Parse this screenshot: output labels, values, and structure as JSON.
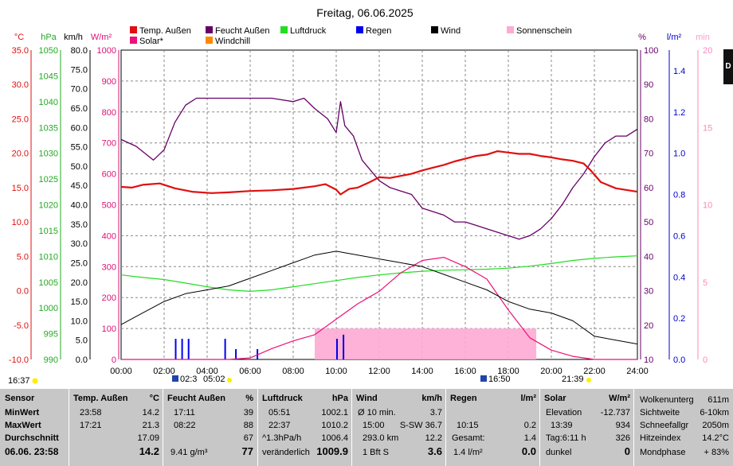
{
  "title": "Freitag, 06.06.2025",
  "legend": [
    {
      "label": "Temp. Außen",
      "color": "#e01010"
    },
    {
      "label": "Feucht Außen",
      "color": "#660066"
    },
    {
      "label": "Luftdruck",
      "color": "#22dd22"
    },
    {
      "label": "Regen",
      "color": "#0000ee"
    },
    {
      "label": "Wind",
      "color": "#000000"
    },
    {
      "label": "Sonnenschein",
      "color": "#ffaad4"
    },
    {
      "label": "Solar*",
      "color": "#ee1177"
    },
    {
      "label": "Windchill",
      "color": "#ff8800"
    }
  ],
  "axes_units": {
    "temp": "°C",
    "press": "hPa",
    "wind": "km/h",
    "solar": "W/m²",
    "hum": "%",
    "rain": "l/m²",
    "sun": "min"
  },
  "axis_ticks": {
    "temp": [
      "35.0",
      "30.0",
      "25.0",
      "20.0",
      "15.0",
      "10.0",
      "5.0",
      "0.0",
      "-5.0",
      "-10.0"
    ],
    "press": [
      "1050",
      "1045",
      "1040",
      "1035",
      "1030",
      "1025",
      "1020",
      "1015",
      "1010",
      "1005",
      "1000",
      "995",
      "990"
    ],
    "wind": [
      "80.0",
      "75.0",
      "70.0",
      "65.0",
      "60.0",
      "55.0",
      "50.0",
      "45.0",
      "40.0",
      "35.0",
      "30.0",
      "25.0",
      "20.0",
      "15.0",
      "10.0",
      "5.0",
      "0.0"
    ],
    "solar": [
      "1000",
      "900",
      "800",
      "700",
      "600",
      "500",
      "400",
      "300",
      "200",
      "100",
      "0"
    ],
    "hum": [
      "100",
      "90",
      "80",
      "70",
      "60",
      "50",
      "40",
      "30",
      "20",
      "10"
    ],
    "rain": [
      "1.4",
      "1.2",
      "1.0",
      "0.8",
      "0.6",
      "0.4",
      "0.2",
      "0.0"
    ],
    "sun": [
      "20",
      "15",
      "10",
      "5",
      "0"
    ],
    "time": [
      "00:00",
      "02:00",
      "04:00",
      "06:00",
      "08:00",
      "10:00",
      "12:00",
      "14:00",
      "16:00",
      "18:00",
      "20:00",
      "22:00",
      "24:00"
    ]
  },
  "below_axis": {
    "moonset": "16:37",
    "sunrise_a": "02:3",
    "sunrise_b": "05:02",
    "sunset_a": "16:50",
    "sunset_b": "21:39"
  },
  "edge_letter": "D",
  "chart_data": {
    "type": "line",
    "x_unit": "hours",
    "xlim": [
      0,
      24
    ],
    "series": [
      {
        "name": "Temp. Außen",
        "axis": "temp",
        "ylim": [
          -10,
          35
        ],
        "points": [
          [
            0,
            15.1
          ],
          [
            0.5,
            15.0
          ],
          [
            1,
            15.4
          ],
          [
            1.8,
            15.6
          ],
          [
            2.5,
            14.9
          ],
          [
            3.3,
            14.4
          ],
          [
            4.2,
            14.2
          ],
          [
            5,
            14.3
          ],
          [
            6,
            14.5
          ],
          [
            7,
            14.6
          ],
          [
            8,
            14.8
          ],
          [
            9,
            15.2
          ],
          [
            9.5,
            15.5
          ],
          [
            10,
            14.7
          ],
          [
            10.2,
            14.0
          ],
          [
            10.6,
            14.8
          ],
          [
            11,
            15.0
          ],
          [
            11.5,
            15.7
          ],
          [
            12,
            16.5
          ],
          [
            12.5,
            16.4
          ],
          [
            13,
            16.7
          ],
          [
            13.5,
            17.0
          ],
          [
            14,
            17.5
          ],
          [
            14.5,
            17.9
          ],
          [
            15,
            18.3
          ],
          [
            15.5,
            18.8
          ],
          [
            16,
            19.2
          ],
          [
            16.5,
            19.6
          ],
          [
            17,
            19.8
          ],
          [
            17.5,
            20.3
          ],
          [
            18,
            20.1
          ],
          [
            18.5,
            19.9
          ],
          [
            19,
            19.9
          ],
          [
            19.5,
            19.6
          ],
          [
            20,
            19.4
          ],
          [
            20.5,
            19.1
          ],
          [
            21,
            18.9
          ],
          [
            21.5,
            18.5
          ],
          [
            21.8,
            17.6
          ],
          [
            22.3,
            15.8
          ],
          [
            23,
            14.9
          ],
          [
            24,
            14.4
          ]
        ]
      },
      {
        "name": "Feucht Außen",
        "axis": "hum",
        "ylim": [
          10,
          100
        ],
        "points": [
          [
            0,
            74
          ],
          [
            0.7,
            72
          ],
          [
            1.5,
            68
          ],
          [
            2,
            71
          ],
          [
            2.5,
            79
          ],
          [
            3,
            84
          ],
          [
            3.5,
            86
          ],
          [
            4,
            86
          ],
          [
            5,
            86
          ],
          [
            6,
            86
          ],
          [
            7,
            86
          ],
          [
            8,
            85
          ],
          [
            8.5,
            86
          ],
          [
            9,
            83
          ],
          [
            9.6,
            80
          ],
          [
            10,
            76
          ],
          [
            10.2,
            85
          ],
          [
            10.4,
            78
          ],
          [
            10.8,
            75
          ],
          [
            11.2,
            68
          ],
          [
            12,
            62
          ],
          [
            12.5,
            60
          ],
          [
            13,
            59
          ],
          [
            13.5,
            58
          ],
          [
            14,
            54
          ],
          [
            15,
            52
          ],
          [
            15.5,
            50
          ],
          [
            16,
            50
          ],
          [
            16.5,
            49
          ],
          [
            17,
            48
          ],
          [
            18,
            46
          ],
          [
            18.5,
            45
          ],
          [
            19,
            46
          ],
          [
            19.5,
            48
          ],
          [
            20,
            51
          ],
          [
            20.5,
            55
          ],
          [
            21,
            60
          ],
          [
            21.5,
            64
          ],
          [
            22,
            69
          ],
          [
            22.5,
            73
          ],
          [
            23,
            75
          ],
          [
            23.5,
            75
          ],
          [
            24,
            77
          ]
        ]
      },
      {
        "name": "Luftdruck",
        "axis": "press",
        "ylim": [
          990,
          1050
        ],
        "points": [
          [
            0,
            1006.4
          ],
          [
            1,
            1005.9
          ],
          [
            2,
            1005.5
          ],
          [
            3,
            1004.8
          ],
          [
            4,
            1004.1
          ],
          [
            5,
            1003.5
          ],
          [
            6,
            1003.2
          ],
          [
            7,
            1003.5
          ],
          [
            8,
            1004.1
          ],
          [
            9,
            1004.7
          ],
          [
            10,
            1005.3
          ],
          [
            11,
            1005.9
          ],
          [
            12,
            1006.4
          ],
          [
            13,
            1006.8
          ],
          [
            14,
            1007.1
          ],
          [
            15,
            1007.3
          ],
          [
            16,
            1007.4
          ],
          [
            17,
            1007.5
          ],
          [
            18,
            1007.7
          ],
          [
            19,
            1008.1
          ],
          [
            20,
            1008.6
          ],
          [
            21,
            1009.2
          ],
          [
            22,
            1009.6
          ],
          [
            23,
            1009.9
          ],
          [
            24,
            1010.1
          ]
        ]
      },
      {
        "name": "Wind",
        "axis": "wind",
        "ylim": [
          0,
          80
        ],
        "points": [
          [
            0,
            9
          ],
          [
            1,
            12
          ],
          [
            2,
            15
          ],
          [
            3,
            17
          ],
          [
            4,
            18
          ],
          [
            5,
            19
          ],
          [
            6,
            21
          ],
          [
            7,
            23
          ],
          [
            8,
            25
          ],
          [
            9,
            27
          ],
          [
            10,
            28
          ],
          [
            11,
            27
          ],
          [
            12,
            26
          ],
          [
            13,
            25
          ],
          [
            14,
            24
          ],
          [
            15,
            22
          ],
          [
            16,
            20
          ],
          [
            17,
            18
          ],
          [
            18,
            15
          ],
          [
            19,
            13
          ],
          [
            20,
            12
          ],
          [
            21,
            10
          ],
          [
            22,
            6
          ],
          [
            23,
            5
          ],
          [
            24,
            4
          ]
        ]
      },
      {
        "name": "Solar*",
        "axis": "solar",
        "ylim": [
          0,
          1000
        ],
        "points": [
          [
            0,
            0
          ],
          [
            5,
            0
          ],
          [
            6,
            5
          ],
          [
            7,
            35
          ],
          [
            8,
            60
          ],
          [
            9,
            80
          ],
          [
            10,
            130
          ],
          [
            11,
            180
          ],
          [
            11.5,
            200
          ],
          [
            12,
            220
          ],
          [
            13,
            280
          ],
          [
            14,
            320
          ],
          [
            15,
            330
          ],
          [
            16,
            300
          ],
          [
            17,
            260
          ],
          [
            18,
            160
          ],
          [
            19,
            70
          ],
          [
            20,
            30
          ],
          [
            21,
            10
          ],
          [
            22,
            0
          ],
          [
            24,
            0
          ]
        ]
      },
      {
        "name": "Sonnenschein",
        "axis": "sun",
        "ylim": [
          0,
          20
        ],
        "points": [
          [
            8.8,
            0
          ],
          [
            9,
            2
          ],
          [
            10,
            2
          ],
          [
            11,
            2
          ],
          [
            12,
            2
          ],
          [
            13,
            2
          ],
          [
            14,
            2
          ],
          [
            15,
            2
          ],
          [
            16,
            2
          ],
          [
            17,
            2
          ],
          [
            18,
            2
          ],
          [
            19,
            2
          ],
          [
            19.3,
            0
          ]
        ]
      },
      {
        "name": "Regen",
        "axis": "rain",
        "ylim": [
          0,
          1.5
        ],
        "points": [
          [
            2.5,
            0.1
          ],
          [
            2.8,
            0.1
          ],
          [
            3.1,
            0.1
          ],
          [
            4.8,
            0.1
          ],
          [
            5.3,
            0.05
          ],
          [
            6.3,
            0.05
          ],
          [
            10,
            0.1
          ],
          [
            10.3,
            0.12
          ]
        ]
      }
    ]
  },
  "stats": {
    "sensor": {
      "h": "Sensor",
      "r1": "MinWert",
      "r2": "MaxWert",
      "r3": "Durchschnitt",
      "r4": "06.06. 23:58"
    },
    "temp": {
      "h": "Temp. Außen",
      "u": "°C",
      "min_t": "23:58",
      "min_v": "14.2",
      "max_t": "17:21",
      "max_v": "21.3",
      "avg": "17.09",
      "cur": "14.2"
    },
    "hum": {
      "h": "Feucht Außen",
      "u": "%",
      "min_t": "17:11",
      "min_v": "39",
      "max_t": "08:22",
      "max_v": "88",
      "avg": "67",
      "x4": "9.41 g/m³",
      "cur": "77"
    },
    "press": {
      "h": "Luftdruck",
      "u": "hPa",
      "min_t": "05:51",
      "min_v": "1002.1",
      "max_t": "22:37",
      "max_v": "1010.2",
      "r3a": "^1.3hPa/h",
      "r3b": "1006.4",
      "r4a": "veränderlich",
      "cur": "1009.9"
    },
    "wind": {
      "h": "Wind",
      "u": "km/h",
      "r1a": "Ø 10 min.",
      "r1b": "3.7",
      "r2a": "15:00",
      "r2b": "S-SW 36.7",
      "r3a": "293.0 km",
      "r3b": "12.2",
      "r4a": "1 Bft S",
      "cur": "3.6"
    },
    "rain": {
      "h": "Regen",
      "u": "l/m²",
      "r2a": "10:15",
      "r2b": "0.2",
      "r3a": "Gesamt:",
      "r3b": "1.4",
      "r4a": "1.4 l/m²",
      "cur": "0.0"
    },
    "solar": {
      "h": "Solar",
      "u": "W/m²",
      "r1a": "Elevation",
      "r1b": "-12.737",
      "r2a": "13:39",
      "r2b": "934",
      "r3a": "Tag:6:11 h",
      "r3b": "326",
      "r4a": "dunkel",
      "cur": "0"
    },
    "misc": {
      "r0a": "Wolkenunterg",
      "r0b": "611m",
      "r1a": "Sichtweite",
      "r1b": "6-10km",
      "r2a": "Schneefallgr",
      "r2b": "2050m",
      "r3a": "Hitzeindex",
      "r3b": "14.2°C",
      "r4a": "Mondphase",
      "r4b": "+ 83%"
    }
  }
}
